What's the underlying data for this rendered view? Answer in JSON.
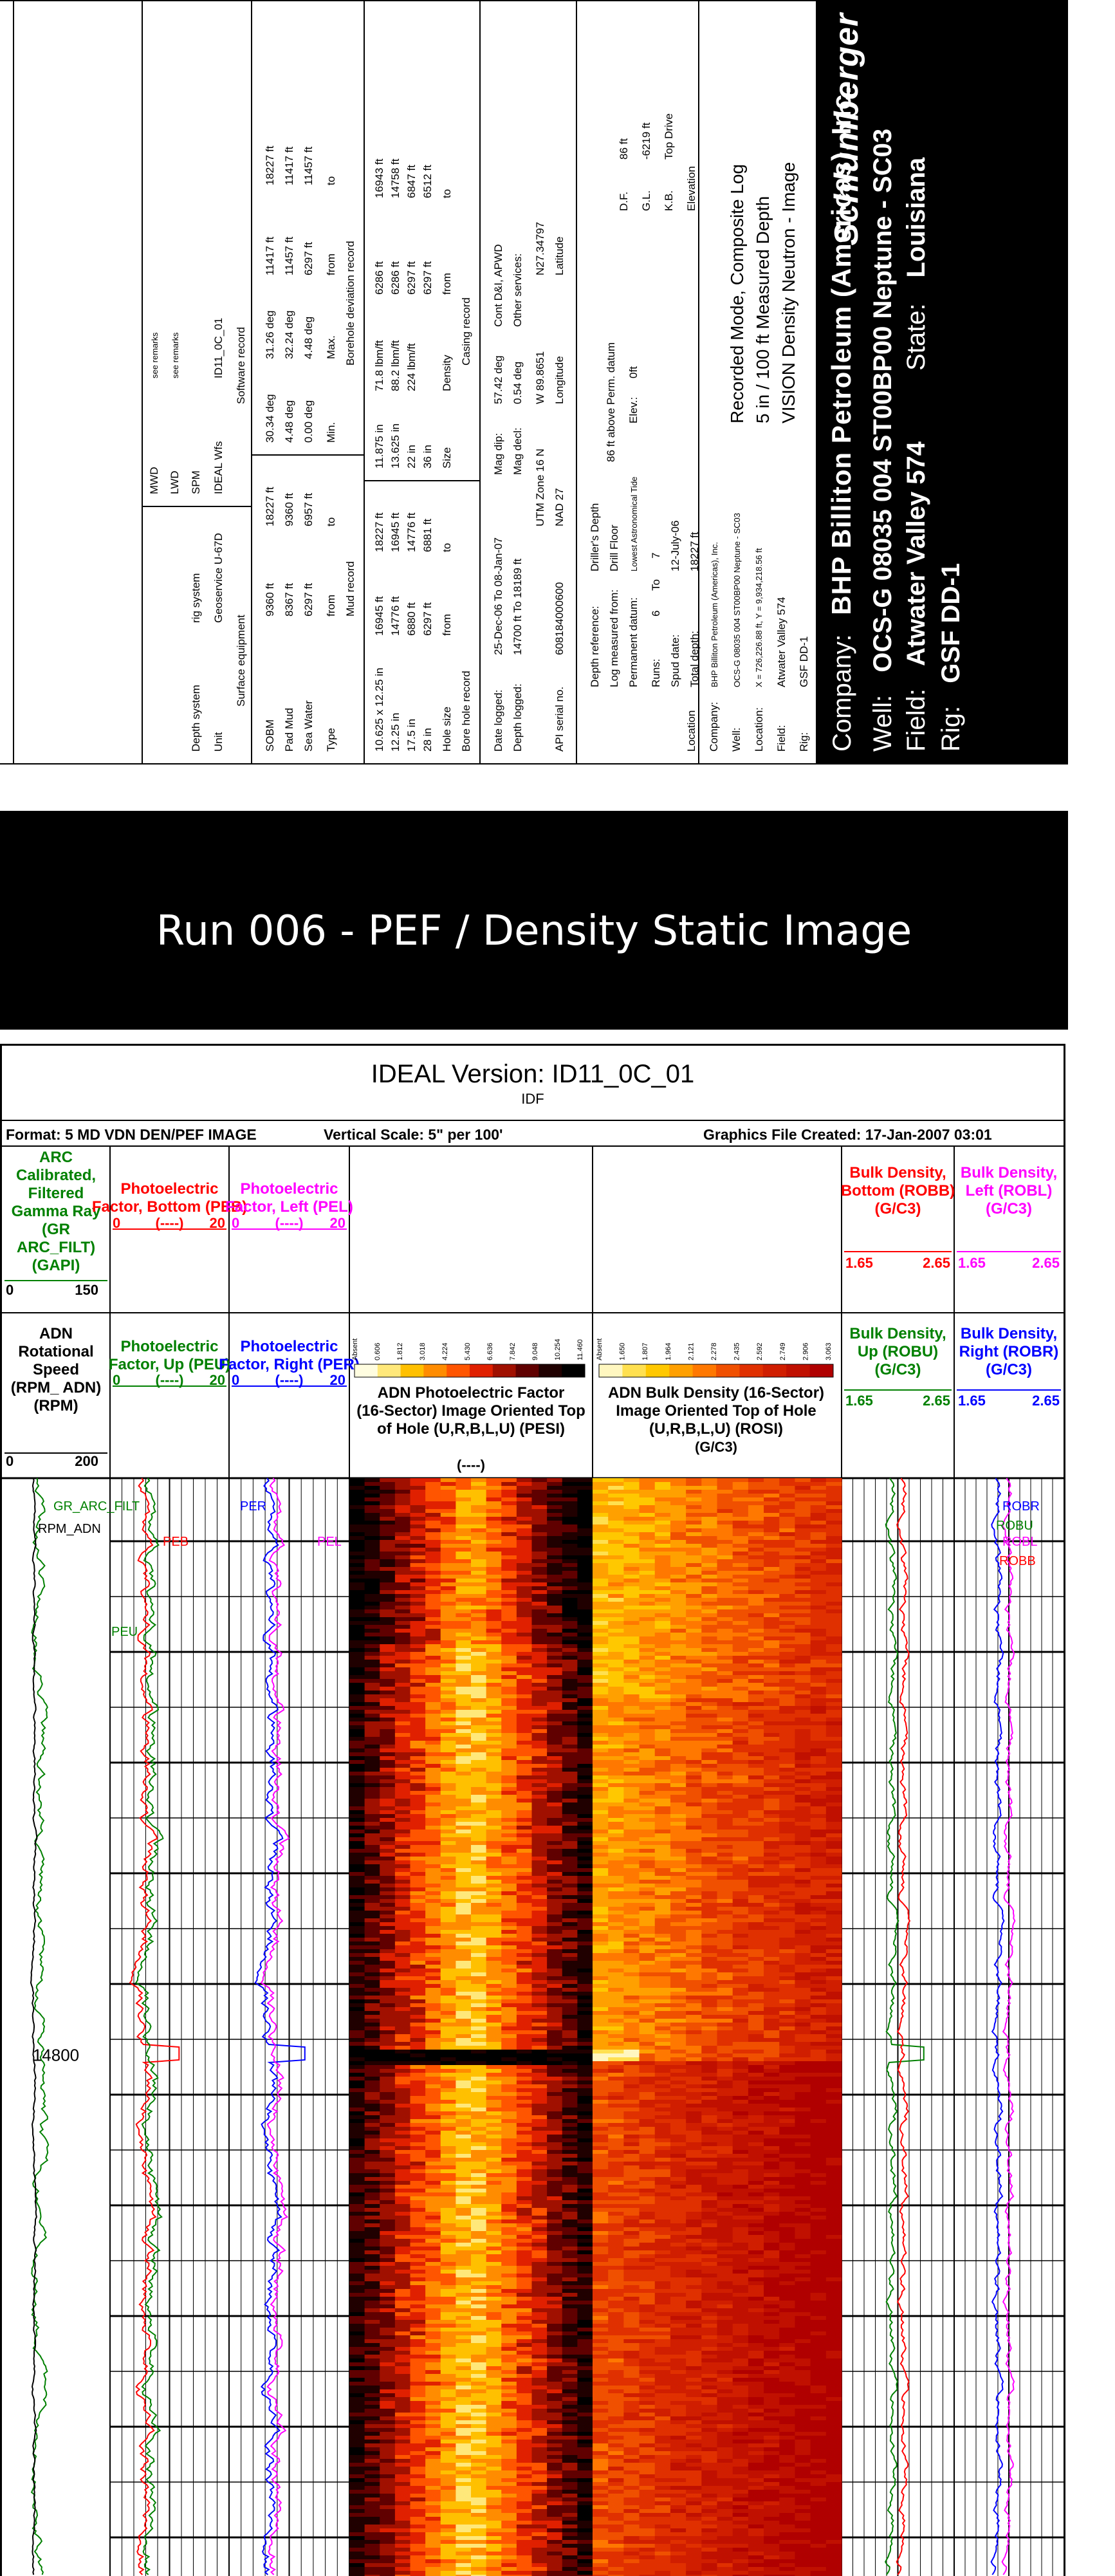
{
  "header": {
    "company_label": "Company:",
    "company": "BHP Billiton Petroleum (Americas), Inc.",
    "logo": "Schlumberger",
    "well_label": "Well:",
    "well": "OCS-G 08035 004 ST00BP00   Neptune - SC03",
    "field_label": "Field:",
    "field": "Atwater Valley 574",
    "state_label": "State:",
    "state": "Louisiana",
    "rig_label": "Rig:",
    "rig": "GSF DD-1",
    "info": {
      "rig_label": "Rig:",
      "rig": "GSF DD-1",
      "field_label": "Field:",
      "field": "Atwater Valley 574",
      "location_label": "Location:",
      "location": "X = 726,226.88 ft, Y = 9,934,218.56 ft",
      "well_label": "Well:",
      "well": "OCS-G 08035 004 ST00BP00    Neptune - SC03",
      "company_label": "Company:",
      "company": "BHP Billiton Petroleum (Americas), Inc."
    },
    "log_title": "VISION Density Neutron - Image",
    "log_sub1": "5 in / 100 ft Measured Depth",
    "log_sub2": "Recorded Mode, Composite Log",
    "location_box": "Location",
    "elevation_box": "Elevation",
    "total_depth_label": "Total depth:",
    "total_depth": "18227 ft",
    "spud_label": "Spud date:",
    "spud": "12-July-06",
    "runs_label": "Runs:",
    "runs_from": "6",
    "runs_to_label": "To",
    "runs_to": "7",
    "perm_datum_label": "Permanent datum:",
    "perm_datum": "Lowest Astronomical Tide",
    "log_meas_label": "Log measured from:",
    "log_meas": "Drill Floor",
    "depth_ref_label": "Depth reference:",
    "depth_ref": "Driller's Depth",
    "elev_label": "Elev.:",
    "elev": "0ft",
    "above_label": "86 ft     above Perm. datum",
    "kb_label": "K.B.",
    "kb": "Top Drive",
    "gl_label": "G.L.",
    "gl": "-6219 ft",
    "df_label": "D.F.",
    "df": "86 ft",
    "api_label": "API serial no.",
    "api": "608184000600",
    "utm_label": "UTM Zone 16 N",
    "nad_label": "NAD 27",
    "longitude_label": "Longitude",
    "longitude": "W 89.8651",
    "latitude_label": "Latitude",
    "latitude": "N27.34797",
    "depth_logged_label": "Depth logged:",
    "depth_logged": "14700 ft   To   18189 ft",
    "date_logged_label": "Date logged:",
    "date_logged": "25-Dec-06   To   08-Jan-07",
    "mag_decl_label": "Mag decl:",
    "mag_decl": "0.54 deg",
    "mag_dip_label": "Mag dip:",
    "mag_dip": "57.42 deg",
    "other_services_label": "Other services:",
    "other_services": "Cont D&I, APWD",
    "bore_hole_record": "Bore hole record",
    "casing_record": "Casing record",
    "hole_size_label": "Hole size",
    "from_label": "from",
    "to_label": "to",
    "size_label": "Size",
    "density_label": "Density",
    "hole_rows": [
      {
        "size": "28 in",
        "from": "6297 ft",
        "to": "6881 ft"
      },
      {
        "size": "17.5 in",
        "from": "6880 ft",
        "to": "14776 ft"
      },
      {
        "size": "12.25 in",
        "from": "14776 ft",
        "to": "16945 ft"
      },
      {
        "size": "10.625 x 12.25 in",
        "from": "16945 ft",
        "to": "18227 ft"
      }
    ],
    "casing_rows": [
      {
        "size": "36 in",
        "density": "",
        "from": "6297 ft",
        "to": "6512 ft"
      },
      {
        "size": "22 in",
        "density": "224 lbm/ft",
        "from": "6297 ft",
        "to": "6847 ft"
      },
      {
        "size": "13.625 in",
        "density": "88.2 lbm/ft",
        "from": "6286 ft",
        "to": "14758 ft"
      },
      {
        "size": "11.875 in",
        "density": "71.8 lbm/ft",
        "from": "6286 ft",
        "to": "16943 ft"
      }
    ],
    "mud_record": "Mud record",
    "type_label": "Type",
    "mud_rows": [
      {
        "type": "Sea Water",
        "from": "6297 ft",
        "to": "6957 ft"
      },
      {
        "type": "Pad Mud",
        "from": "8367 ft",
        "to": "9360 ft"
      },
      {
        "type": "SOBM",
        "from": "9360 ft",
        "to": "18227 ft"
      }
    ],
    "dev_record": "Borehole deviation record",
    "dev_min": "Min.",
    "dev_max": "Max.",
    "dev_rows": [
      {
        "min": "0.00 deg",
        "max": "4.48 deg",
        "from": "6297 ft",
        "to": "11457 ft"
      },
      {
        "min": "4.48 deg",
        "max": "32.24 deg",
        "from": "11457 ft",
        "to": "11417 ft"
      },
      {
        "min": "30.34 deg",
        "max": "31.26 deg",
        "from": "11417 ft",
        "to": "18227 ft"
      }
    ],
    "surface_equipment": "Surface equipment",
    "software_record": "Software record",
    "unit_label": "Unit",
    "unit_value": "Geoservice U-67D",
    "depth_system_label": "Depth system",
    "depth_system_value": "rig system",
    "ideal_label": "IDEAL Wfs",
    "ideal_value": "ID11_0C_01",
    "spm_label": "SPM",
    "lwd_label": "LWD",
    "lwd_value": "see remarks",
    "mwd_label": "MWD",
    "mwd_value": "see remarks"
  },
  "banner": "Run 006 - PEF / Density Static Image",
  "log": {
    "ideal_version": "IDEAL Version: ID11_0C_01",
    "idf": "IDF",
    "format": "Format: 5 MD VDN DEN/PEF IMAGE",
    "vertical_scale": "Vertical Scale:   5\" per 100'",
    "graphics_file": "Graphics File Created:  17-Jan-2007 03:01",
    "depth_label": "14800",
    "tracks_top": [
      {
        "title": "ARC Calibrated, Filtered Gamma Ray (GR ARC_FILT) (GAPI)",
        "left": "0",
        "right": "150",
        "color": "#008000"
      },
      {
        "title": "Photoelectric Factor, Bottom (PEB)",
        "left": "0",
        "mid": "(----)",
        "right": "20",
        "color": "#ff0000"
      },
      {
        "title": "Photoelectric Factor, Left (PEL)",
        "left": "0",
        "mid": "(----)",
        "right": "20",
        "color": "#ff00ff"
      },
      {
        "title": "Bulk Density, Bottom (ROBB) (G/C3)",
        "left": "1.65",
        "right": "2.65",
        "color": "#ff0000"
      },
      {
        "title": "Bulk Density, Left (ROBL) (G/C3)",
        "left": "1.65",
        "right": "2.65",
        "color": "#ff00ff"
      }
    ],
    "tracks_bottom": [
      {
        "title": "ADN Rotational Speed (RPM_ ADN) (RPM)",
        "left": "0",
        "right": "200",
        "color": "#000000"
      },
      {
        "title": "Photoelectric Factor, Up (PEU)",
        "left": "0",
        "mid": "(----)",
        "right": "20",
        "color": "#008000"
      },
      {
        "title": "Photoelectric Factor, Right (PER)",
        "left": "0",
        "mid": "(----)",
        "right": "20",
        "color": "#0000ff"
      },
      {
        "title": "ADN Photoelectric Factor (16-Sector) Image Oriented Top of Hole (U,R,B,L,U) (PESI)",
        "unit": "(----)",
        "color": "#000000"
      },
      {
        "title": "ADN Bulk Density (16-Sector) Image Oriented Top of Hole (U,R,B,L,U) (ROSI)",
        "unit": "(G/C3)",
        "color": "#000000"
      },
      {
        "title": "Bulk Density, Up (ROBU) (G/C3)",
        "left": "1.65",
        "right": "2.65",
        "color": "#008000"
      },
      {
        "title": "Bulk Density, Right (ROBR) (G/C3)",
        "left": "1.65",
        "right": "2.65",
        "color": "#0000ff"
      }
    ],
    "pef_scale": [
      "Absent",
      "0.606",
      "1.812",
      "3.018",
      "4.224",
      "5.430",
      "6.636",
      "7.842",
      "9.048",
      "10.254",
      "11.460"
    ],
    "rho_scale": [
      "Absent",
      "1.650",
      "1.807",
      "1.964",
      "2.121",
      "2.278",
      "2.435",
      "2.592",
      "2.749",
      "2.906",
      "3.063"
    ],
    "curve_tags": [
      "GR_ARC_FILT",
      "PEB",
      "RPM_ADN",
      "PER",
      "PEL",
      "PEU",
      "ROBR",
      "ROBU",
      "ROBL",
      "ROBB"
    ]
  }
}
